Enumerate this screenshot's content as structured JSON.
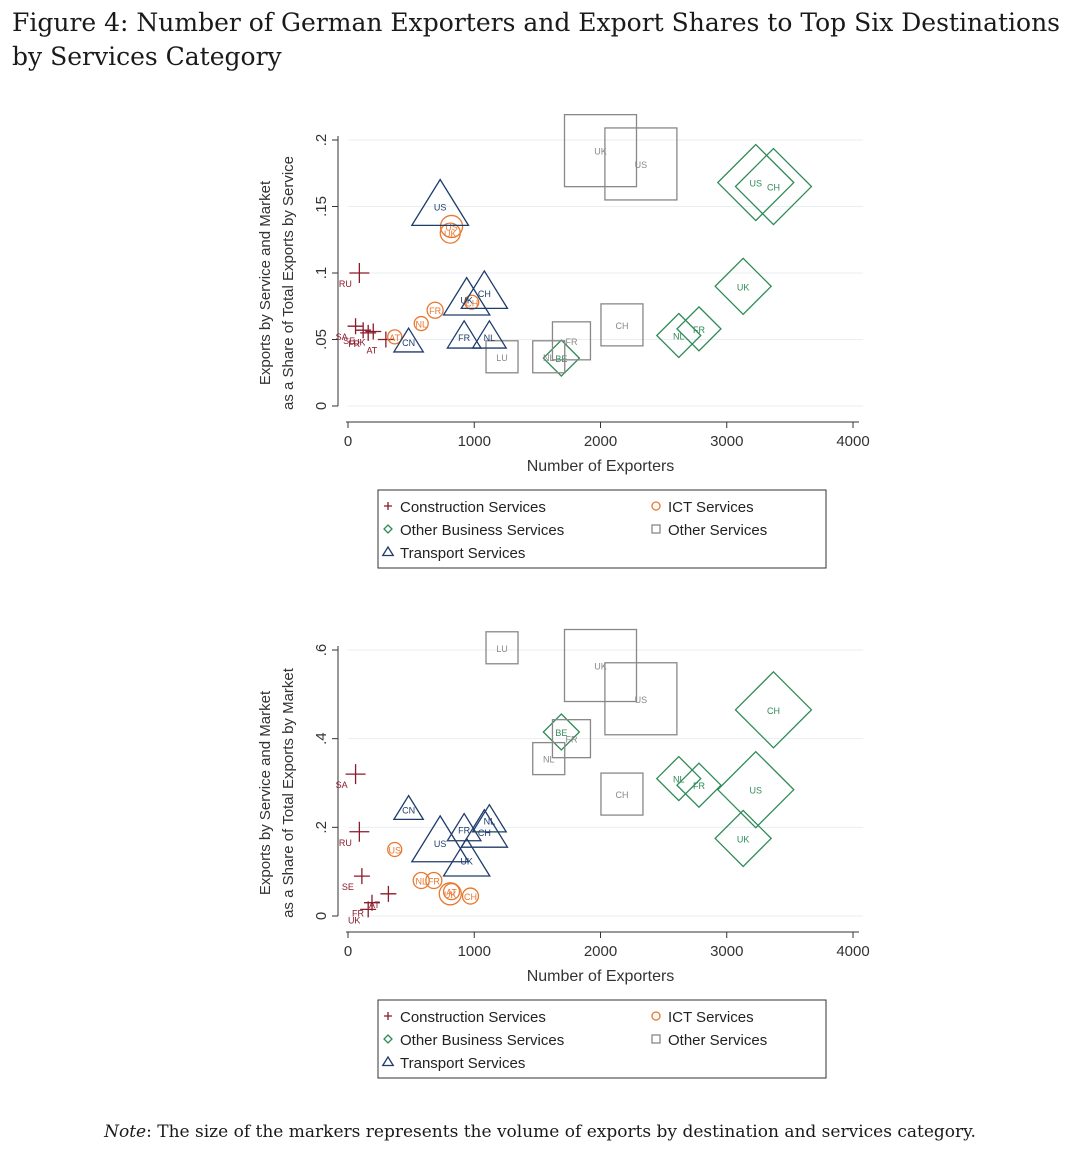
{
  "figure_title_prefix": "Figure 4:",
  "figure_title_text": "Number of German Exporters and Export Shares to Top Six Destinations by Services Category",
  "note_label": "Note",
  "note_text": ": The size of the markers represents the volume of exports by destination and services category.",
  "colors": {
    "construction": "#8b1a2b",
    "ict": "#e87830",
    "other_business": "#2e8b57",
    "other_services": "#888888",
    "transport": "#1f3d6b"
  },
  "legend": {
    "construction": "Construction Services",
    "ict": "ICT Services",
    "other_business": "Other Business Services",
    "other_services": "Other Services",
    "transport": "Transport Services"
  },
  "chart_data": [
    {
      "type": "scatter",
      "title": "",
      "xlabel": "Number of Exporters",
      "ylabel_line1": "Exports by Service and Market",
      "ylabel_line2": "as a Share of Total Exports by Service",
      "xlim": [
        0,
        4000
      ],
      "ylim": [
        0,
        0.2
      ],
      "xticks": [
        0,
        1000,
        2000,
        3000,
        4000
      ],
      "xtick_labels": [
        "0",
        "1000",
        "2000",
        "3000",
        "4000"
      ],
      "yticks": [
        0,
        0.05,
        0.1,
        0.15,
        0.2
      ],
      "ytick_labels": [
        "0",
        ".05",
        ".1",
        ".15",
        ".2"
      ],
      "series": [
        {
          "name": "Construction Services",
          "marker": "plus",
          "points": [
            {
              "label": "RU",
              "x": 90,
              "y": 0.1,
              "size": 10
            },
            {
              "label": "SA",
              "x": 60,
              "y": 0.06,
              "size": 8
            },
            {
              "label": "SE",
              "x": 120,
              "y": 0.057,
              "size": 8
            },
            {
              "label": "FR",
              "x": 160,
              "y": 0.055,
              "size": 8
            },
            {
              "label": "UK",
              "x": 200,
              "y": 0.056,
              "size": 8
            },
            {
              "label": "AT",
              "x": 300,
              "y": 0.05,
              "size": 8
            }
          ]
        },
        {
          "name": "ICT Services",
          "marker": "circle",
          "points": [
            {
              "label": "US",
              "x": 820,
              "y": 0.135,
              "size": 11
            },
            {
              "label": "UK",
              "x": 810,
              "y": 0.13,
              "size": 10
            },
            {
              "label": "FR",
              "x": 690,
              "y": 0.072,
              "size": 8
            },
            {
              "label": "NL",
              "x": 580,
              "y": 0.062,
              "size": 7
            },
            {
              "label": "CH",
              "x": 980,
              "y": 0.078,
              "size": 7
            },
            {
              "label": "AT",
              "x": 370,
              "y": 0.052,
              "size": 7
            }
          ]
        },
        {
          "name": "Other Business Services",
          "marker": "diamond",
          "points": [
            {
              "label": "US",
              "x": 3230,
              "y": 0.168,
              "size": 38
            },
            {
              "label": "CH",
              "x": 3370,
              "y": 0.165,
              "size": 38
            },
            {
              "label": "UK",
              "x": 3130,
              "y": 0.09,
              "size": 28
            },
            {
              "label": "NL",
              "x": 2620,
              "y": 0.053,
              "size": 22
            },
            {
              "label": "FR",
              "x": 2780,
              "y": 0.058,
              "size": 22
            },
            {
              "label": "BE",
              "x": 1690,
              "y": 0.036,
              "size": 18
            }
          ]
        },
        {
          "name": "Other Services",
          "marker": "square",
          "points": [
            {
              "label": "UK",
              "x": 2000,
              "y": 0.192,
              "size": 36
            },
            {
              "label": "US",
              "x": 2320,
              "y": 0.182,
              "size": 36
            },
            {
              "label": "CH",
              "x": 2170,
              "y": 0.061,
              "size": 21
            },
            {
              "label": "FR",
              "x": 1770,
              "y": 0.049,
              "size": 19
            },
            {
              "label": "LU",
              "x": 1220,
              "y": 0.037,
              "size": 16
            },
            {
              "label": "NL",
              "x": 1590,
              "y": 0.037,
              "size": 16
            }
          ]
        },
        {
          "name": "Transport Services",
          "marker": "triangle",
          "points": [
            {
              "label": "US",
              "x": 730,
              "y": 0.15,
              "size": 27
            },
            {
              "label": "CH",
              "x": 1080,
              "y": 0.085,
              "size": 22
            },
            {
              "label": "UK",
              "x": 940,
              "y": 0.08,
              "size": 22
            },
            {
              "label": "FR",
              "x": 920,
              "y": 0.052,
              "size": 16
            },
            {
              "label": "NL",
              "x": 1120,
              "y": 0.052,
              "size": 16
            },
            {
              "label": "CN",
              "x": 480,
              "y": 0.048,
              "size": 14
            }
          ]
        }
      ]
    },
    {
      "type": "scatter",
      "title": "",
      "xlabel": "Number of Exporters",
      "ylabel_line1": "Exports by Service and Market",
      "ylabel_line2": "as a Share of Total Exports by Market",
      "xlim": [
        0,
        4000
      ],
      "ylim": [
        0,
        0.6
      ],
      "xticks": [
        0,
        1000,
        2000,
        3000,
        4000
      ],
      "xtick_labels": [
        "0",
        "1000",
        "2000",
        "3000",
        "4000"
      ],
      "yticks": [
        0,
        0.2,
        0.4,
        0.6
      ],
      "ytick_labels": [
        "0",
        ".2",
        ".4",
        ".6"
      ],
      "series": [
        {
          "name": "Construction Services",
          "marker": "plus",
          "points": [
            {
              "label": "SA",
              "x": 60,
              "y": 0.32,
              "size": 10
            },
            {
              "label": "RU",
              "x": 90,
              "y": 0.19,
              "size": 10
            },
            {
              "label": "SE",
              "x": 110,
              "y": 0.09,
              "size": 8
            },
            {
              "label": "FR",
              "x": 190,
              "y": 0.03,
              "size": 8
            },
            {
              "label": "UK",
              "x": 160,
              "y": 0.015,
              "size": 8
            },
            {
              "label": "AT",
              "x": 320,
              "y": 0.05,
              "size": 8
            }
          ]
        },
        {
          "name": "ICT Services",
          "marker": "circle",
          "points": [
            {
              "label": "US",
              "x": 370,
              "y": 0.15,
              "size": 7
            },
            {
              "label": "NL",
              "x": 580,
              "y": 0.08,
              "size": 8
            },
            {
              "label": "FR",
              "x": 680,
              "y": 0.08,
              "size": 8
            },
            {
              "label": "UK",
              "x": 810,
              "y": 0.05,
              "size": 11
            },
            {
              "label": "CH",
              "x": 970,
              "y": 0.045,
              "size": 8
            },
            {
              "label": "AT",
              "x": 820,
              "y": 0.055,
              "size": 8
            }
          ]
        },
        {
          "name": "Other Business Services",
          "marker": "diamond",
          "points": [
            {
              "label": "BE",
              "x": 1690,
              "y": 0.415,
              "size": 18
            },
            {
              "label": "CH",
              "x": 3370,
              "y": 0.465,
              "size": 38
            },
            {
              "label": "US",
              "x": 3230,
              "y": 0.285,
              "size": 38
            },
            {
              "label": "UK",
              "x": 3130,
              "y": 0.175,
              "size": 28
            },
            {
              "label": "NL",
              "x": 2620,
              "y": 0.31,
              "size": 22
            },
            {
              "label": "FR",
              "x": 2780,
              "y": 0.295,
              "size": 22
            }
          ]
        },
        {
          "name": "Other Services",
          "marker": "square",
          "points": [
            {
              "label": "LU",
              "x": 1220,
              "y": 0.605,
              "size": 16
            },
            {
              "label": "UK",
              "x": 2000,
              "y": 0.565,
              "size": 36
            },
            {
              "label": "US",
              "x": 2320,
              "y": 0.49,
              "size": 36
            },
            {
              "label": "FR",
              "x": 1770,
              "y": 0.4,
              "size": 19
            },
            {
              "label": "NL",
              "x": 1590,
              "y": 0.355,
              "size": 16
            },
            {
              "label": "CH",
              "x": 2170,
              "y": 0.275,
              "size": 21
            }
          ]
        },
        {
          "name": "Transport Services",
          "marker": "triangle",
          "points": [
            {
              "label": "CN",
              "x": 480,
              "y": 0.24,
              "size": 14
            },
            {
              "label": "US",
              "x": 730,
              "y": 0.165,
              "size": 27
            },
            {
              "label": "FR",
              "x": 920,
              "y": 0.195,
              "size": 16
            },
            {
              "label": "CH",
              "x": 1080,
              "y": 0.19,
              "size": 22
            },
            {
              "label": "NL",
              "x": 1120,
              "y": 0.215,
              "size": 16
            },
            {
              "label": "UK",
              "x": 940,
              "y": 0.125,
              "size": 22
            }
          ]
        }
      ]
    }
  ]
}
